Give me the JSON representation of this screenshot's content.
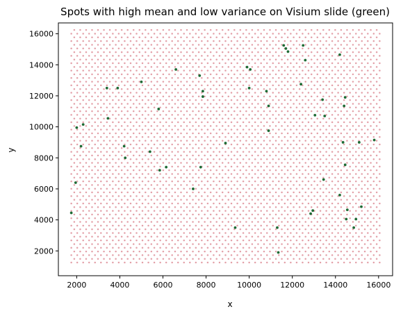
{
  "chart_data": {
    "type": "scatter",
    "title": "Spots with high mean and low variance on Visium slide (green)",
    "xlabel": "x",
    "ylabel": "y",
    "xlim": [
      1150,
      16650
    ],
    "ylim": [
      400,
      16700
    ],
    "xticks": [
      2000,
      4000,
      6000,
      8000,
      10000,
      12000,
      14000,
      16000
    ],
    "yticks": [
      2000,
      4000,
      6000,
      8000,
      10000,
      12000,
      14000,
      16000
    ],
    "grid": false,
    "legend": "none",
    "background_grid": {
      "x_range": [
        1750,
        16100
      ],
      "y_range": [
        1250,
        16450
      ],
      "x_step": 275,
      "y_step": 238,
      "color": "#e3a0a8"
    },
    "highlight_color": "#1e6b35",
    "highlight": {
      "x": [
        1750,
        1950,
        2000,
        2200,
        2300,
        3400,
        3450,
        3900,
        4200,
        4250,
        5000,
        5400,
        5800,
        5850,
        6150,
        6600,
        7400,
        7700,
        7750,
        7850,
        7850,
        8900,
        9350,
        9900,
        10000,
        10050,
        10800,
        10900,
        10900,
        11300,
        11350,
        11600,
        11700,
        11800,
        12400,
        12500,
        12600,
        12850,
        12950,
        13050,
        13400,
        13450,
        13500,
        14200,
        14200,
        14350,
        14400,
        14450,
        14450,
        14500,
        14550,
        14850,
        14950,
        15100,
        15200,
        15800
      ],
      "y": [
        4450,
        6400,
        9950,
        8750,
        10150,
        12500,
        10550,
        12500,
        8750,
        8000,
        12900,
        8400,
        11150,
        7200,
        7400,
        13700,
        6000,
        13300,
        7400,
        12300,
        11950,
        8950,
        3500,
        13850,
        12500,
        13700,
        12300,
        9750,
        11350,
        3500,
        1900,
        15250,
        15050,
        14850,
        12750,
        15250,
        14300,
        4400,
        4600,
        10750,
        11750,
        6600,
        10700,
        14650,
        5600,
        9000,
        11350,
        7550,
        11900,
        4050,
        4650,
        3500,
        4050,
        9000,
        4850,
        9150
      ]
    }
  }
}
